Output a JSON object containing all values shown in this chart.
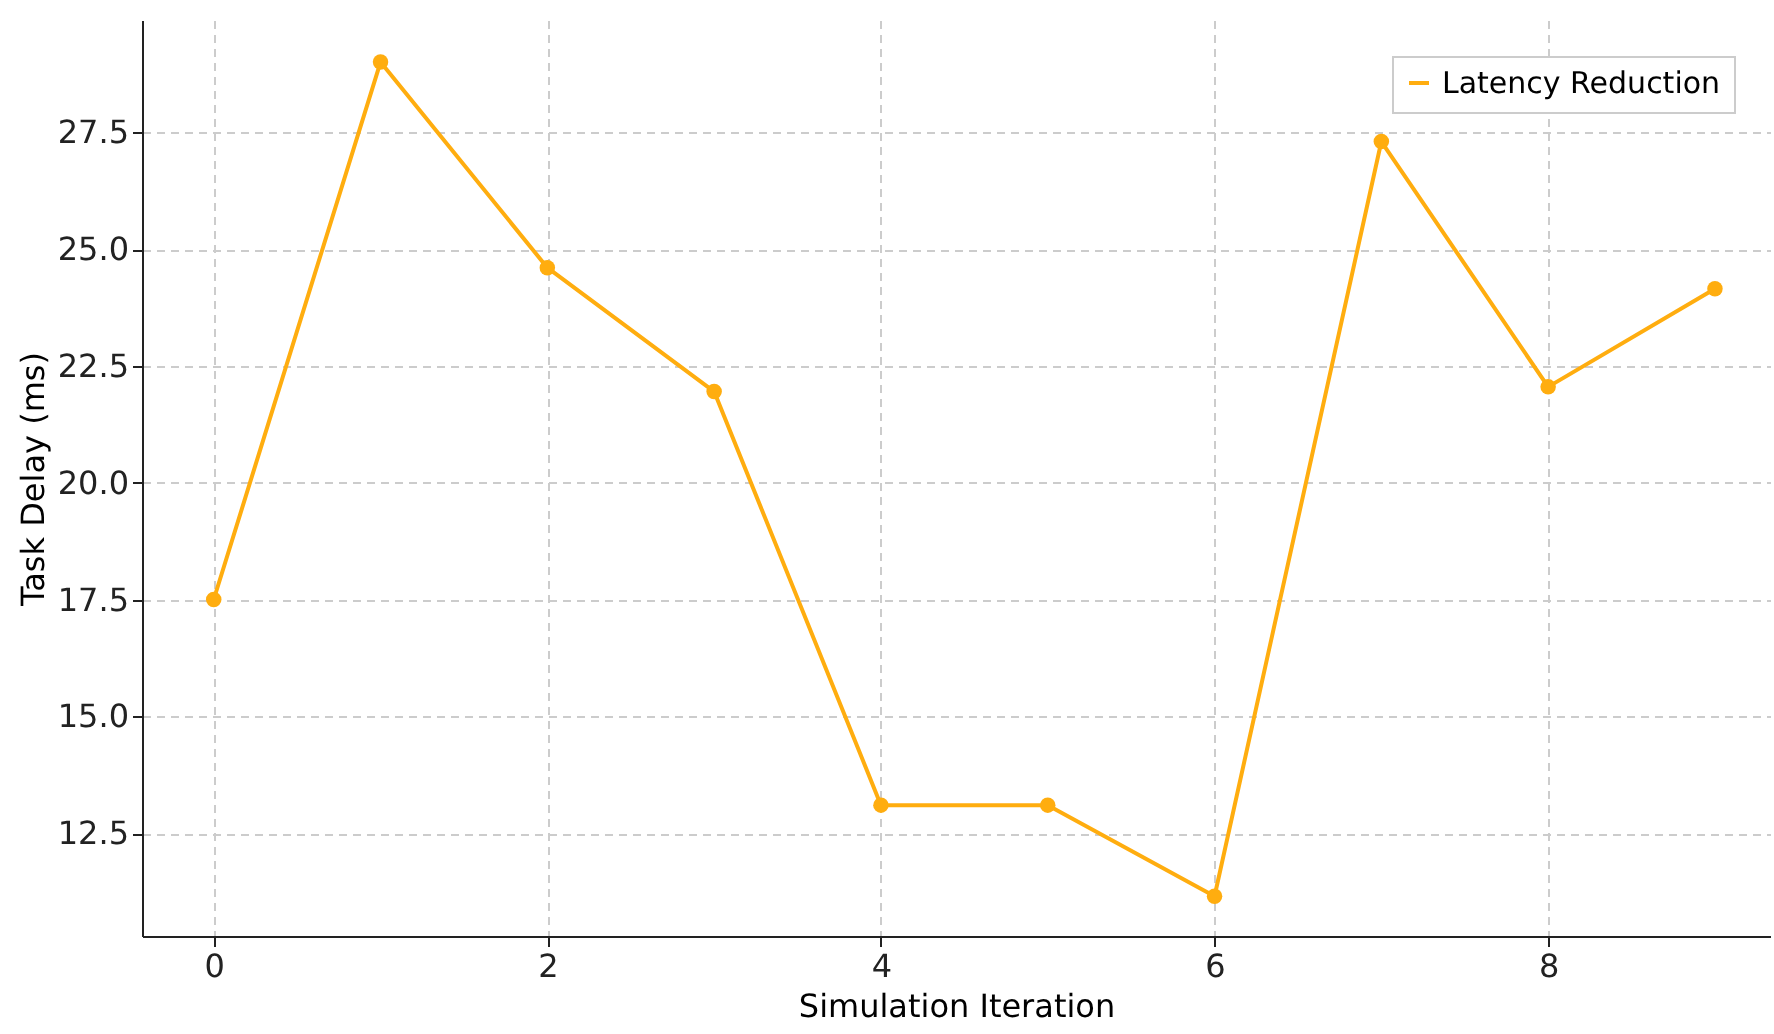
{
  "chart_data": {
    "type": "line",
    "xlabel": "Simulation Iteration",
    "ylabel": "Task Delay (ms)",
    "x": [
      0,
      1,
      2,
      3,
      4,
      5,
      6,
      7,
      8,
      9
    ],
    "series": [
      {
        "name": "Latency Reduction",
        "color": "#ffad0f",
        "values": [
          17.5,
          29.0,
          24.6,
          21.95,
          13.1,
          13.1,
          11.15,
          27.3,
          22.05,
          24.15
        ]
      }
    ],
    "xlim": [
      -0.43,
      9.33
    ],
    "ylim": [
      10.3,
      29.9
    ],
    "xticks": [
      0,
      2,
      4,
      6,
      8
    ],
    "yticks": [
      12.5,
      {
        "value": 15,
        "label": "15.0"
      },
      17.5,
      {
        "value": 20,
        "label": "20.0"
      },
      22.5,
      {
        "value": 25,
        "label": "25.0"
      },
      27.5
    ],
    "grid": true,
    "legend": "top right",
    "marker": "circle",
    "line_style": "solid"
  }
}
